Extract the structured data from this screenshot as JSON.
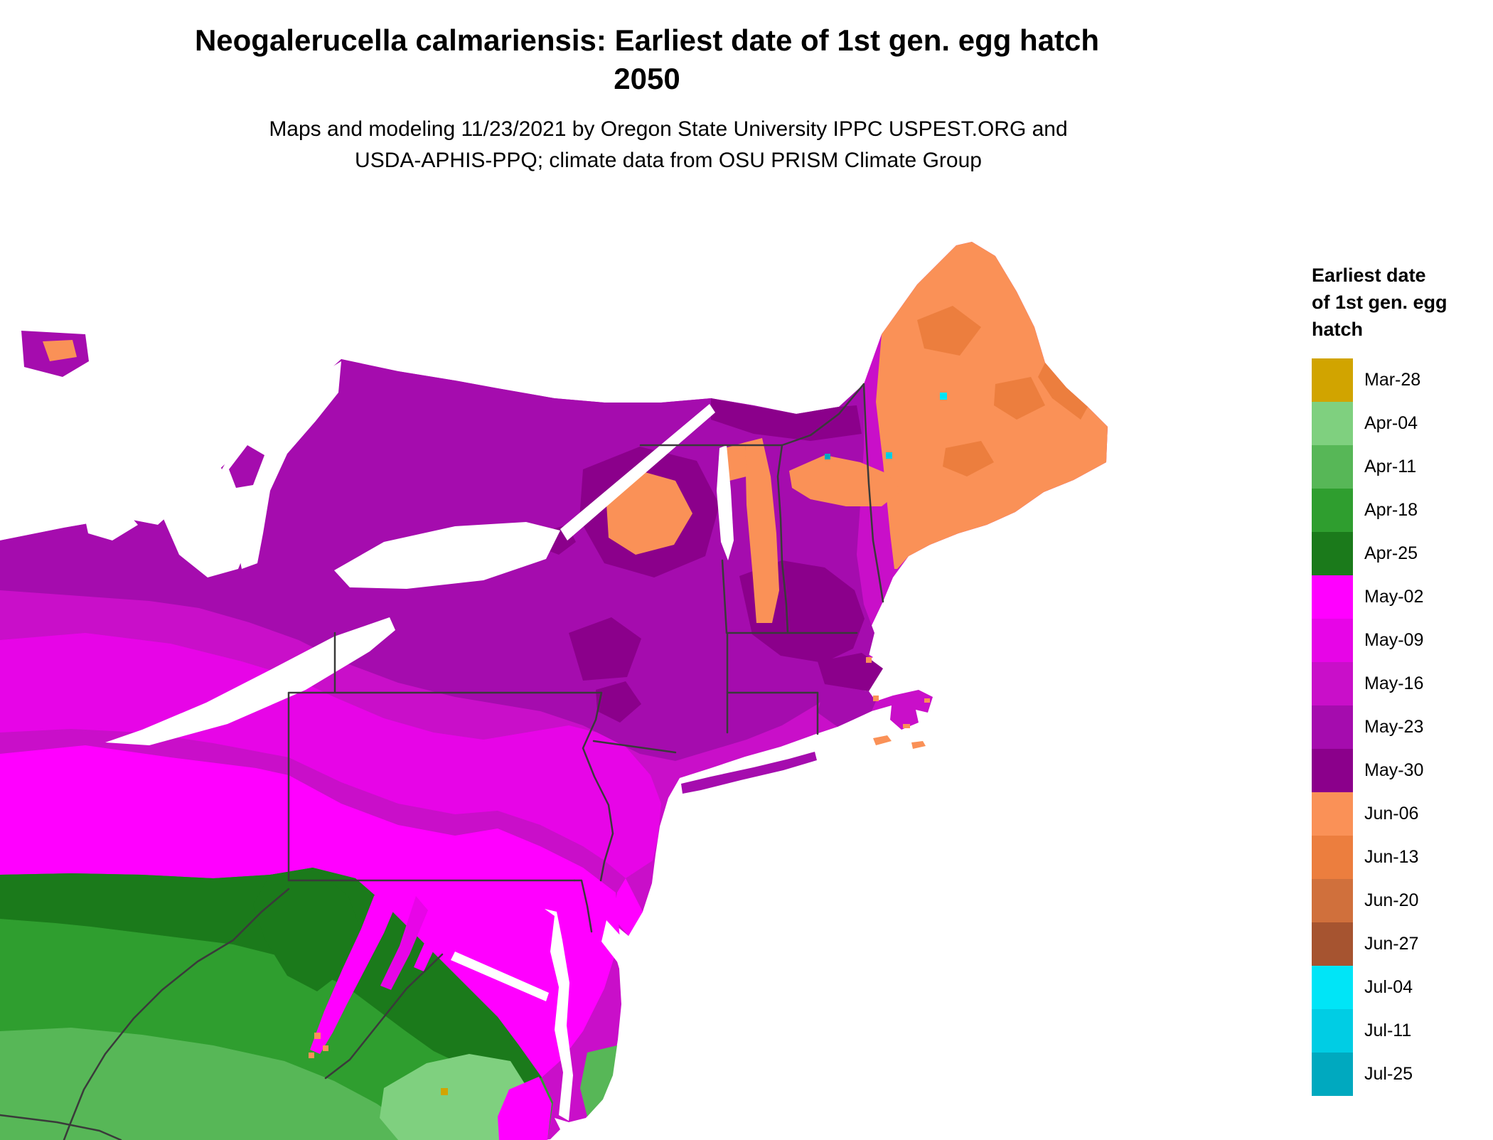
{
  "title": {
    "line1": "Neogalerucella calmariensis: Earliest date of 1st gen. egg hatch",
    "line2": "2050"
  },
  "subtitle": {
    "line1": "Maps and modeling 11/23/2021 by Oregon State University IPPC USPEST.ORG and",
    "line2": "USDA-APHIS-PPQ; climate data from OSU PRISM Climate Group"
  },
  "legend": {
    "title": "Earliest date\nof 1st gen. egg\nhatch",
    "entries": [
      {
        "label": "Mar-28",
        "color": "#d1a400"
      },
      {
        "label": "Apr-04",
        "color": "#7fd07f"
      },
      {
        "label": "Apr-11",
        "color": "#57b757"
      },
      {
        "label": "Apr-18",
        "color": "#2f9e2f"
      },
      {
        "label": "Apr-25",
        "color": "#1b7a1b"
      },
      {
        "label": "May-02",
        "color": "#ff00ff"
      },
      {
        "label": "May-09",
        "color": "#e705e7"
      },
      {
        "label": "May-16",
        "color": "#c90fc9"
      },
      {
        "label": "May-23",
        "color": "#a50cae"
      },
      {
        "label": "May-30",
        "color": "#8b008b"
      },
      {
        "label": "Jun-06",
        "color": "#fa9157"
      },
      {
        "label": "Jun-13",
        "color": "#ec7e3e"
      },
      {
        "label": "Jun-20",
        "color": "#d0703c"
      },
      {
        "label": "Jun-27",
        "color": "#a65430"
      },
      {
        "label": "Jul-04",
        "color": "#00e5f7"
      },
      {
        "label": "Jul-11",
        "color": "#00cde4"
      },
      {
        "label": "Jul-25",
        "color": "#00a9bf"
      }
    ]
  },
  "map": {
    "region": "Northeastern United States with adjacent southern Ontario and Quebec",
    "water_color": "#ffffff",
    "border_color": "#3a3a3a",
    "zones": {
      "maine": "Jun-06 to Jun-13",
      "northern-new-england-adirondacks": "May-30 with Jun-06 highlands",
      "upstate-new-york-southern-new-england": "May-16 to May-30",
      "pennsylvania-ohio-new-jersey": "May-02 to May-16",
      "maryland-coastal-plain": "May-02",
      "appalachian-west-virginia-virginia": "Apr-18 to Apr-25",
      "southeast-virginia": "Apr-04 to Apr-11",
      "maine-mountain-lakes-dots": "Jul-04 to Jul-25",
      "central-virginia-dot": "Mar-28"
    }
  }
}
